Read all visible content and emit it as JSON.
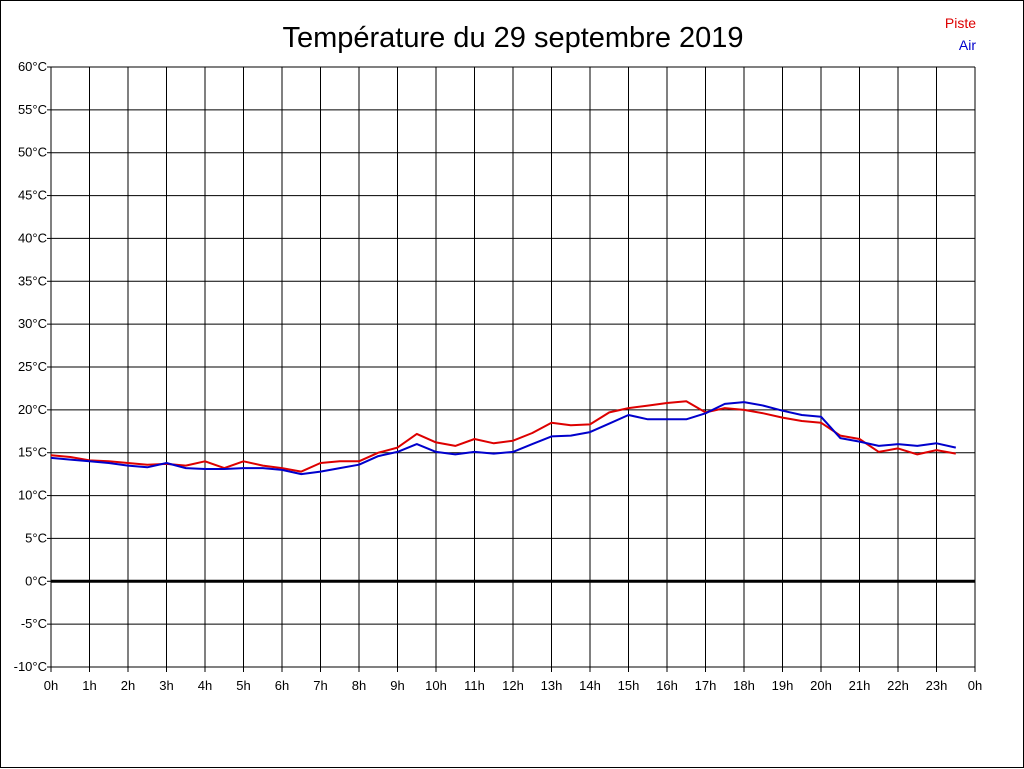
{
  "chart_data": {
    "type": "line",
    "title": "Température du 29 septembre 2019",
    "xlabel": "",
    "ylabel": "",
    "x_tick_labels": [
      "0h",
      "1h",
      "2h",
      "3h",
      "4h",
      "5h",
      "6h",
      "7h",
      "8h",
      "9h",
      "10h",
      "11h",
      "12h",
      "13h",
      "14h",
      "15h",
      "16h",
      "17h",
      "18h",
      "19h",
      "20h",
      "21h",
      "22h",
      "23h",
      "0h"
    ],
    "y_tick_labels": [
      "-10°C",
      "-5°C",
      "0°C",
      "5°C",
      "10°C",
      "15°C",
      "20°C",
      "25°C",
      "30°C",
      "35°C",
      "40°C",
      "45°C",
      "50°C",
      "55°C",
      "60°C"
    ],
    "xlim": [
      0,
      24
    ],
    "ylim": [
      -10,
      60
    ],
    "grid": true,
    "legend_position": "top-right",
    "reference_line": {
      "y": 0,
      "color": "#000000"
    },
    "x": [
      0,
      0.5,
      1,
      1.5,
      2,
      2.5,
      3,
      3.5,
      4,
      4.5,
      5,
      5.5,
      6,
      6.5,
      7,
      7.5,
      8,
      8.5,
      9,
      9.5,
      10,
      10.5,
      11,
      11.5,
      12,
      12.5,
      13,
      13.5,
      14,
      14.5,
      15,
      15.5,
      16,
      16.5,
      17,
      17.5,
      18,
      18.5,
      19,
      19.5,
      20,
      20.5,
      21,
      21.5,
      22,
      22.5,
      23,
      23.5
    ],
    "series": [
      {
        "name": "Piste",
        "color": "#dd0000",
        "values": [
          14.7,
          14.5,
          14.1,
          14.0,
          13.8,
          13.6,
          13.7,
          13.5,
          14.0,
          13.2,
          14.0,
          13.5,
          13.2,
          12.8,
          13.8,
          14.0,
          14.0,
          15.0,
          15.6,
          17.2,
          16.2,
          15.8,
          16.6,
          16.1,
          16.4,
          17.3,
          18.5,
          18.2,
          18.3,
          19.7,
          20.2,
          20.5,
          20.8,
          21.0,
          19.7,
          20.2,
          20.0,
          19.6,
          19.1,
          18.7,
          18.5,
          17.0,
          16.6,
          15.1,
          15.5,
          14.8,
          15.3,
          14.9
        ]
      },
      {
        "name": "Air",
        "color": "#0000cc",
        "values": [
          14.4,
          14.2,
          14.0,
          13.8,
          13.5,
          13.3,
          13.8,
          13.2,
          13.1,
          13.1,
          13.2,
          13.2,
          13.0,
          12.5,
          12.8,
          13.2,
          13.6,
          14.6,
          15.1,
          16.0,
          15.1,
          14.8,
          15.1,
          14.9,
          15.1,
          16.0,
          16.9,
          17.0,
          17.4,
          18.4,
          19.4,
          18.9,
          18.9,
          18.9,
          19.6,
          20.7,
          20.9,
          20.5,
          19.9,
          19.4,
          19.2,
          16.7,
          16.3,
          15.8,
          16.0,
          15.8,
          16.1,
          15.6
        ]
      }
    ]
  }
}
